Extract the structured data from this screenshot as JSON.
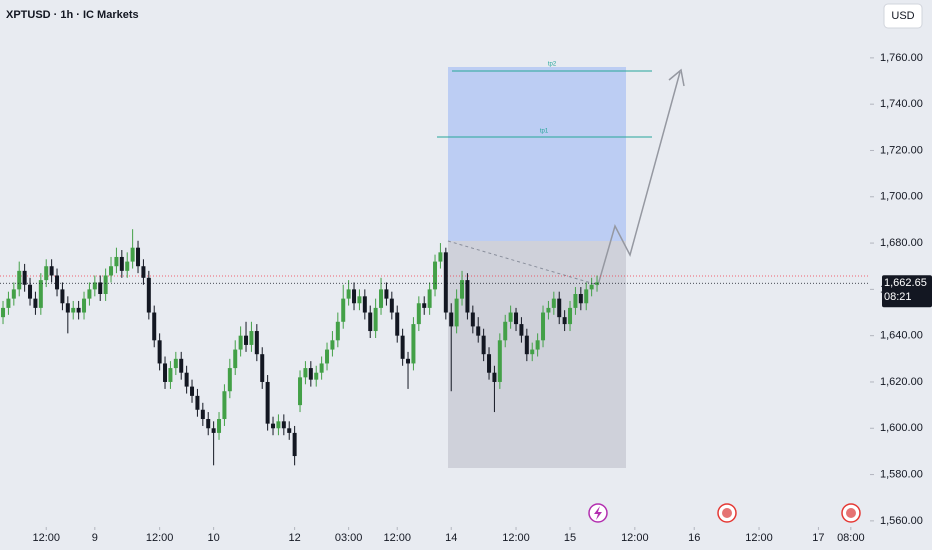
{
  "chart_data": {
    "type": "candlestick",
    "title": "XPTUSD · 1h · IC Markets",
    "currency": "USD",
    "x": [
      0,
      1,
      2,
      3,
      4,
      5,
      6,
      7,
      8,
      9,
      10,
      11,
      12,
      13,
      14,
      15,
      16,
      17,
      18,
      19,
      20,
      21,
      22,
      23,
      24,
      25,
      26,
      27,
      28,
      29,
      30,
      31,
      32,
      33,
      34,
      35,
      36,
      37,
      38,
      39,
      40,
      41,
      42,
      43,
      44,
      45,
      46,
      47,
      48,
      49,
      50,
      51,
      52,
      53,
      54,
      55,
      56,
      57,
      58,
      59,
      60,
      61,
      62,
      63,
      64,
      65,
      66,
      67,
      68,
      69,
      70,
      71,
      72,
      73,
      74,
      75,
      76,
      77,
      78,
      79,
      80,
      81,
      82,
      83,
      84,
      85,
      86,
      87,
      88,
      89,
      90,
      91,
      92,
      93,
      94,
      95,
      96,
      97,
      98,
      99,
      100,
      101,
      102,
      103,
      104,
      105,
      106,
      107,
      108,
      109,
      110
    ],
    "open": [
      1648,
      1652,
      1656,
      1660,
      1668,
      1662,
      1656,
      1652,
      1664,
      1670,
      1666,
      1660,
      1654,
      1650,
      1652,
      1650,
      1656,
      1660,
      1663,
      1658,
      1666,
      1670,
      1674,
      1668,
      1672,
      1678,
      1670,
      1665,
      1650,
      1638,
      1628,
      1620,
      1626,
      1630,
      1624,
      1618,
      1614,
      1608,
      1604,
      1600,
      1598,
      1604,
      1616,
      1626,
      1634,
      1640,
      1636,
      1642,
      1632,
      1620,
      1602,
      1600,
      1603,
      1600,
      1598,
      1610,
      1622,
      1626,
      1621,
      1624,
      1628,
      1634,
      1638,
      1646,
      1656,
      1660,
      1654,
      1657,
      1650,
      1642,
      1652,
      1660,
      1656,
      1650,
      1640,
      1630,
      1628,
      1645,
      1654,
      1652,
      1660,
      1672,
      1676,
      1650,
      1644,
      1656,
      1664,
      1650,
      1644,
      1640,
      1632,
      1624,
      1620,
      1638,
      1646,
      1650,
      1645,
      1640,
      1632,
      1634,
      1638,
      1650,
      1652,
      1656,
      1648,
      1645,
      1652,
      1658,
      1654,
      1660,
      1662
    ],
    "high": [
      1655,
      1659,
      1663,
      1672,
      1671,
      1665,
      1659,
      1667,
      1673,
      1673,
      1669,
      1663,
      1657,
      1655,
      1655,
      1659,
      1663,
      1666,
      1666,
      1669,
      1674,
      1678,
      1677,
      1676,
      1686,
      1681,
      1673,
      1668,
      1653,
      1641,
      1631,
      1629,
      1633,
      1633,
      1627,
      1621,
      1617,
      1611,
      1607,
      1603,
      1607,
      1619,
      1630,
      1638,
      1644,
      1646,
      1646,
      1645,
      1635,
      1623,
      1605,
      1606,
      1606,
      1603,
      1601,
      1625,
      1629,
      1629,
      1627,
      1631,
      1637,
      1642,
      1650,
      1662,
      1664,
      1663,
      1660,
      1660,
      1653,
      1656,
      1665,
      1663,
      1659,
      1653,
      1643,
      1633,
      1648,
      1657,
      1657,
      1663,
      1675,
      1680,
      1678,
      1654,
      1660,
      1668,
      1667,
      1653,
      1648,
      1643,
      1635,
      1627,
      1641,
      1649,
      1653,
      1652,
      1648,
      1643,
      1637,
      1641,
      1653,
      1655,
      1659,
      1659,
      1651,
      1655,
      1661,
      1661,
      1663,
      1665,
      1666
    ],
    "low": [
      1645,
      1649,
      1653,
      1657,
      1659,
      1653,
      1649,
      1649,
      1661,
      1663,
      1657,
      1651,
      1641,
      1647,
      1647,
      1647,
      1653,
      1657,
      1655,
      1655,
      1663,
      1667,
      1665,
      1665,
      1669,
      1667,
      1662,
      1647,
      1635,
      1625,
      1617,
      1617,
      1623,
      1621,
      1615,
      1611,
      1605,
      1601,
      1597,
      1584,
      1595,
      1601,
      1613,
      1623,
      1631,
      1633,
      1633,
      1629,
      1617,
      1599,
      1597,
      1597,
      1597,
      1595,
      1584,
      1607,
      1619,
      1618,
      1618,
      1621,
      1625,
      1631,
      1635,
      1643,
      1653,
      1651,
      1651,
      1647,
      1639,
      1639,
      1649,
      1653,
      1647,
      1637,
      1627,
      1617,
      1625,
      1642,
      1649,
      1649,
      1657,
      1669,
      1647,
      1616,
      1641,
      1653,
      1647,
      1641,
      1637,
      1629,
      1621,
      1607,
      1617,
      1635,
      1643,
      1642,
      1637,
      1629,
      1629,
      1631,
      1635,
      1647,
      1649,
      1645,
      1642,
      1642,
      1649,
      1651,
      1651,
      1657,
      1659
    ],
    "close": [
      1652,
      1656,
      1660,
      1668,
      1662,
      1656,
      1652,
      1664,
      1670,
      1666,
      1660,
      1654,
      1650,
      1652,
      1650,
      1656,
      1660,
      1663,
      1658,
      1666,
      1670,
      1674,
      1668,
      1672,
      1678,
      1670,
      1665,
      1650,
      1638,
      1628,
      1620,
      1626,
      1630,
      1624,
      1618,
      1614,
      1608,
      1604,
      1600,
      1598,
      1604,
      1616,
      1626,
      1634,
      1640,
      1636,
      1642,
      1632,
      1620,
      1602,
      1600,
      1603,
      1600,
      1598,
      1588,
      1622,
      1626,
      1621,
      1624,
      1628,
      1634,
      1638,
      1646,
      1656,
      1660,
      1654,
      1657,
      1650,
      1642,
      1652,
      1660,
      1656,
      1650,
      1640,
      1630,
      1628,
      1645,
      1654,
      1652,
      1660,
      1672,
      1676,
      1650,
      1644,
      1656,
      1664,
      1650,
      1644,
      1640,
      1632,
      1624,
      1620,
      1638,
      1646,
      1650,
      1645,
      1640,
      1632,
      1634,
      1638,
      1650,
      1652,
      1656,
      1648,
      1645,
      1652,
      1658,
      1654,
      1660,
      1662,
      1663
    ],
    "up_color": "#43a047",
    "down_color": "#131722",
    "xlim": [
      -0.56,
      160.55
    ],
    "xticks": [
      {
        "value": 8,
        "label": "12:00"
      },
      {
        "value": 17,
        "label": "9"
      },
      {
        "value": 29,
        "label": "12:00"
      },
      {
        "value": 39,
        "label": "10"
      },
      {
        "value": 54,
        "label": "12"
      },
      {
        "value": 64,
        "label": "03:00"
      },
      {
        "value": 73,
        "label": "12:00"
      },
      {
        "value": 83,
        "label": "14"
      },
      {
        "value": 95,
        "label": "12:00"
      },
      {
        "value": 105,
        "label": "15"
      },
      {
        "value": 117,
        "label": "12:00"
      },
      {
        "value": 128,
        "label": "16"
      },
      {
        "value": 140,
        "label": "12:00"
      },
      {
        "value": 151,
        "label": "17"
      },
      {
        "value": 157,
        "label": "08:00"
      }
    ],
    "ylim": [
      1558,
      1785
    ],
    "yticks": [
      {
        "value": 1560,
        "label": "1,560.00"
      },
      {
        "value": 1580,
        "label": "1,580.00"
      },
      {
        "value": 1600,
        "label": "1,600.00"
      },
      {
        "value": 1620,
        "label": "1,620.00"
      },
      {
        "value": 1640,
        "label": "1,640.00"
      },
      {
        "value": 1660,
        "label": "1,660.00"
      },
      {
        "value": 1680,
        "label": "1,680.00"
      },
      {
        "value": 1700,
        "label": "1,700.00"
      },
      {
        "value": 1720,
        "label": "1,720.00"
      },
      {
        "value": 1740,
        "label": "1,740.00"
      },
      {
        "value": 1760,
        "label": "1,760.00"
      }
    ],
    "last_price": {
      "value": 1662.65,
      "label": "1,662.65"
    },
    "countdown": "08:21",
    "annotations": [
      "tp2",
      "tp1"
    ]
  }
}
